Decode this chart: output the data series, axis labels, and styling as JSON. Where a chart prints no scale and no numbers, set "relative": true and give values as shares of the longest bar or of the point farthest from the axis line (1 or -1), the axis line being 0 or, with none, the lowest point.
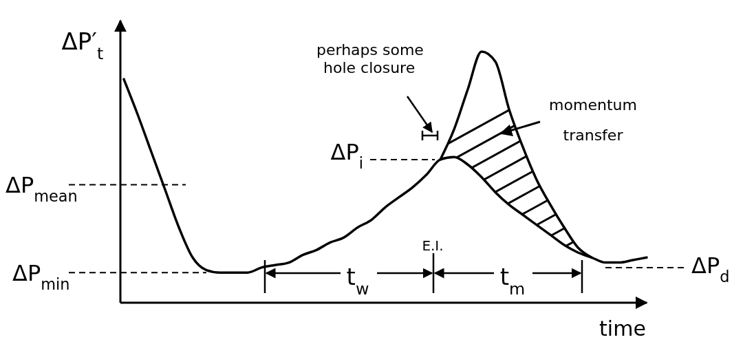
{
  "chart_data": {
    "type": "line",
    "relative": true,
    "xlabel": "time",
    "ylabel": "ΔP′$_{t}$",
    "categories": [
      null,
      null,
      null,
      null,
      null,
      null,
      null,
      null,
      null,
      null,
      null,
      null,
      null,
      null,
      null,
      null,
      null,
      null,
      null,
      null,
      null,
      null,
      null,
      null,
      null,
      null,
      null,
      null,
      null,
      null,
      null,
      null,
      null,
      null,
      null,
      null,
      null,
      null,
      null
    ],
    "series": [
      {
        "color": "#000000",
        "values": [
          0.89,
          0.75,
          0.6,
          0.45,
          0.3,
          0.18,
          0.13,
          0.12,
          0.12,
          0.12,
          0.14,
          0.15,
          0.16,
          0.19,
          0.21,
          0.24,
          0.26,
          0.3,
          0.33,
          0.38,
          0.42,
          0.46,
          0.51,
          0.57,
          0.58,
          0.55,
          0.5,
          0.44,
          0.39,
          0.35,
          0.31,
          0.27,
          0.23,
          0.2,
          0.18,
          0.16,
          0.16,
          0.17,
          0.18
        ]
      },
      {
        "color": "#000000",
        "values": [
          null,
          null,
          null,
          null,
          null,
          null,
          null,
          null,
          null,
          null,
          null,
          null,
          null,
          null,
          null,
          null,
          null,
          null,
          null,
          null,
          null,
          null,
          null,
          0.57,
          0.69,
          0.85,
          1.0,
          0.96,
          0.77,
          0.62,
          0.49,
          0.39,
          0.3,
          0.22,
          0.18,
          null,
          null,
          null,
          null
        ]
      }
    ],
    "ref_lines": [
      {
        "axis": "y",
        "value": 0.47,
        "label": "ΔP$_{mean}$",
        "line_style": "dashed"
      },
      {
        "axis": "y",
        "value": 0.12,
        "label": "ΔP$_{min}$",
        "line_style": "dashed"
      },
      {
        "axis": "y",
        "value": 0.57,
        "label": "ΔP$_{i}$",
        "line_style": "dashed"
      },
      {
        "axis": "y",
        "value": 0.14,
        "label": "ΔP$_{d}$",
        "line_style": "dashed"
      }
    ],
    "annotations": [
      "perhaps some hole closure",
      "momentum transfer",
      "E.I.",
      "t$_{w}$",
      "t$_{m}$"
    ],
    "line_style": "solid"
  }
}
